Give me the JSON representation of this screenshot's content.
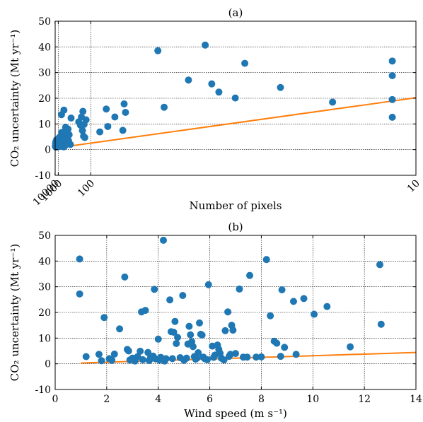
{
  "chart_data": [
    {
      "type": "scatter",
      "title": "(a)",
      "xlabel": "Number of pixels",
      "ylabel": "CO₂ uncertainty (Mt yr⁻¹)",
      "xscale": "reciprocal",
      "xlim": [
        7000,
        10
      ],
      "ylim": [
        -10,
        50
      ],
      "xticks": [
        10000,
        1000,
        100,
        10
      ],
      "xtick_labels": [
        "10000",
        "1000",
        "100",
        "10"
      ],
      "yticks": [
        -10,
        0,
        10,
        20,
        30,
        40,
        50
      ],
      "grid": true,
      "colors": {
        "points": "#1f77b4",
        "fit": "#ff7f0e"
      },
      "points": [
        [
          5000,
          1.2
        ],
        [
          4200,
          1.5
        ],
        [
          3800,
          2.5
        ],
        [
          3500,
          1.8
        ],
        [
          3200,
          2.2
        ],
        [
          3000,
          1.0
        ],
        [
          2900,
          3.0
        ],
        [
          2700,
          1.4
        ],
        [
          2500,
          2.7
        ],
        [
          2400,
          1.6
        ],
        [
          2300,
          3.4
        ],
        [
          2200,
          2.0
        ],
        [
          2100,
          1.2
        ],
        [
          2000,
          2.8
        ],
        [
          1900,
          3.8
        ],
        [
          1800,
          1.5
        ],
        [
          1700,
          2.6
        ],
        [
          1600,
          1.9
        ],
        [
          1550,
          1.3
        ],
        [
          1500,
          3.1
        ],
        [
          1450,
          2.4
        ],
        [
          1400,
          2.0
        ],
        [
          1350,
          1.1
        ],
        [
          1300,
          3.0
        ],
        [
          1250,
          1.6
        ],
        [
          1200,
          2.3
        ],
        [
          1150,
          1.4
        ],
        [
          1100,
          2.8
        ],
        [
          1050,
          1.8
        ],
        [
          1000,
          1.5
        ],
        [
          950,
          2.6
        ],
        [
          900,
          3.2
        ],
        [
          850,
          1.7
        ],
        [
          820,
          1.2
        ],
        [
          790,
          2.9
        ],
        [
          760,
          4.8
        ],
        [
          730,
          1.4
        ],
        [
          700,
          3.6
        ],
        [
          680,
          2.1
        ],
        [
          650,
          1.5
        ],
        [
          620,
          3.1
        ],
        [
          600,
          4.2
        ],
        [
          580,
          1.9
        ],
        [
          560,
          2.7
        ],
        [
          530,
          13.6
        ],
        [
          510,
          6.7
        ],
        [
          500,
          1.3
        ],
        [
          480,
          3.8
        ],
        [
          450,
          2.0
        ],
        [
          420,
          4.5
        ],
        [
          400,
          1.1
        ],
        [
          390,
          15.4
        ],
        [
          380,
          5.6
        ],
        [
          360,
          2.3
        ],
        [
          350,
          1.5
        ],
        [
          330,
          8.7
        ],
        [
          320,
          7.4
        ],
        [
          310,
          3.0
        ],
        [
          280,
          4.2
        ],
        [
          270,
          8.0
        ],
        [
          260,
          3.4
        ],
        [
          250,
          5.8
        ],
        [
          230,
          2.0
        ],
        [
          220,
          12.3
        ],
        [
          150,
          10.8
        ],
        [
          140,
          9.5
        ],
        [
          135,
          12.7
        ],
        [
          130,
          7.4
        ],
        [
          128,
          14.9
        ],
        [
          125,
          5.2
        ],
        [
          123,
          9.8
        ],
        [
          120,
          4.7
        ],
        [
          115,
          11.6
        ],
        [
          80,
          6.9
        ],
        [
          70,
          15.8
        ],
        [
          68,
          9.0
        ],
        [
          60,
          12.7
        ],
        [
          53,
          7.5
        ],
        [
          52,
          17.8
        ],
        [
          51,
          14.5
        ],
        [
          35,
          38.5
        ],
        [
          33,
          16.5
        ],
        [
          27,
          27.1
        ],
        [
          24,
          40.7
        ],
        [
          23,
          25.6
        ],
        [
          22,
          22.4
        ],
        [
          20,
          20.1
        ],
        [
          19,
          33.6
        ],
        [
          16,
          24.2
        ],
        [
          13,
          18.5
        ],
        [
          10.7,
          34.5
        ],
        [
          10.7,
          28.8
        ],
        [
          10.7,
          19.5
        ],
        [
          10.7,
          12.6
        ]
      ],
      "fit": [
        [
          5000,
          0.6
        ],
        [
          10,
          20.2
        ]
      ]
    },
    {
      "type": "scatter",
      "title": "(b)",
      "xlabel": "Wind speed (m s⁻¹)",
      "ylabel": "CO₂ uncertainty (Mt yr⁻¹)",
      "xlim": [
        0,
        14
      ],
      "ylim": [
        -10,
        50
      ],
      "xticks": [
        0,
        2,
        4,
        6,
        8,
        10,
        12,
        14
      ],
      "yticks": [
        -10,
        0,
        10,
        20,
        30,
        40,
        50
      ],
      "grid": true,
      "colors": {
        "points": "#1f77b4",
        "fit": "#ff7f0e"
      },
      "points": [
        [
          0.95,
          40.8
        ],
        [
          0.95,
          27.2
        ],
        [
          1.2,
          2.8
        ],
        [
          1.7,
          3.7
        ],
        [
          1.8,
          1.2
        ],
        [
          1.9,
          18.0
        ],
        [
          2.1,
          2.0
        ],
        [
          2.2,
          1.4
        ],
        [
          2.3,
          3.8
        ],
        [
          2.5,
          13.6
        ],
        [
          2.7,
          33.8
        ],
        [
          2.8,
          5.6
        ],
        [
          2.85,
          5.0
        ],
        [
          2.9,
          1.5
        ],
        [
          3.0,
          2.2
        ],
        [
          3.1,
          1.1
        ],
        [
          3.2,
          2.8
        ],
        [
          3.3,
          4.9
        ],
        [
          3.35,
          20.2
        ],
        [
          3.4,
          1.6
        ],
        [
          3.5,
          20.8
        ],
        [
          3.6,
          4.4
        ],
        [
          3.65,
          1.3
        ],
        [
          3.7,
          2.3
        ],
        [
          3.8,
          3.0
        ],
        [
          3.85,
          29.0
        ],
        [
          3.9,
          1.9
        ],
        [
          4.0,
          9.6
        ],
        [
          4.05,
          1.5
        ],
        [
          4.1,
          2.5
        ],
        [
          4.2,
          48.1
        ],
        [
          4.25,
          1.1
        ],
        [
          4.3,
          2.0
        ],
        [
          4.45,
          24.9
        ],
        [
          4.5,
          12.5
        ],
        [
          4.55,
          2.0
        ],
        [
          4.6,
          12.3
        ],
        [
          4.65,
          16.5
        ],
        [
          4.7,
          7.9
        ],
        [
          4.75,
          10.3
        ],
        [
          4.85,
          2.4
        ],
        [
          4.95,
          26.6
        ],
        [
          5.0,
          1.4
        ],
        [
          5.1,
          2.2
        ],
        [
          5.15,
          7.7
        ],
        [
          5.2,
          14.6
        ],
        [
          5.25,
          11.3
        ],
        [
          5.3,
          8.6
        ],
        [
          5.35,
          6.7
        ],
        [
          5.4,
          2.8
        ],
        [
          5.45,
          1.8
        ],
        [
          5.5,
          2.2
        ],
        [
          5.55,
          4.3
        ],
        [
          5.6,
          15.9
        ],
        [
          5.65,
          11.5
        ],
        [
          5.7,
          11.2
        ],
        [
          5.75,
          2.6
        ],
        [
          5.8,
          2.0
        ],
        [
          5.9,
          1.6
        ],
        [
          5.95,
          30.8
        ],
        [
          6.1,
          6.9
        ],
        [
          6.15,
          2.5
        ],
        [
          6.2,
          3.4
        ],
        [
          6.3,
          7.3
        ],
        [
          6.35,
          5.6
        ],
        [
          6.4,
          4.1
        ],
        [
          6.45,
          2.2
        ],
        [
          6.55,
          1.5
        ],
        [
          6.6,
          12.9
        ],
        [
          6.7,
          20.2
        ],
        [
          6.75,
          2.9
        ],
        [
          6.8,
          3.7
        ],
        [
          6.85,
          15.0
        ],
        [
          6.9,
          13.1
        ],
        [
          7.0,
          4.0
        ],
        [
          7.15,
          29.1
        ],
        [
          7.3,
          2.6
        ],
        [
          7.45,
          2.6
        ],
        [
          7.55,
          34.4
        ],
        [
          7.8,
          2.6
        ],
        [
          8.0,
          2.7
        ],
        [
          8.2,
          40.6
        ],
        [
          8.35,
          18.7
        ],
        [
          8.5,
          8.8
        ],
        [
          8.6,
          8.0
        ],
        [
          8.75,
          2.9
        ],
        [
          8.8,
          28.8
        ],
        [
          8.9,
          6.4
        ],
        [
          9.25,
          24.3
        ],
        [
          9.35,
          3.7
        ],
        [
          9.65,
          25.4
        ],
        [
          10.05,
          19.3
        ],
        [
          10.55,
          22.3
        ],
        [
          11.45,
          6.6
        ],
        [
          12.6,
          38.6
        ],
        [
          12.65,
          15.4
        ]
      ],
      "fit": [
        [
          1.0,
          0.3
        ],
        [
          14.0,
          4.4
        ]
      ]
    }
  ]
}
